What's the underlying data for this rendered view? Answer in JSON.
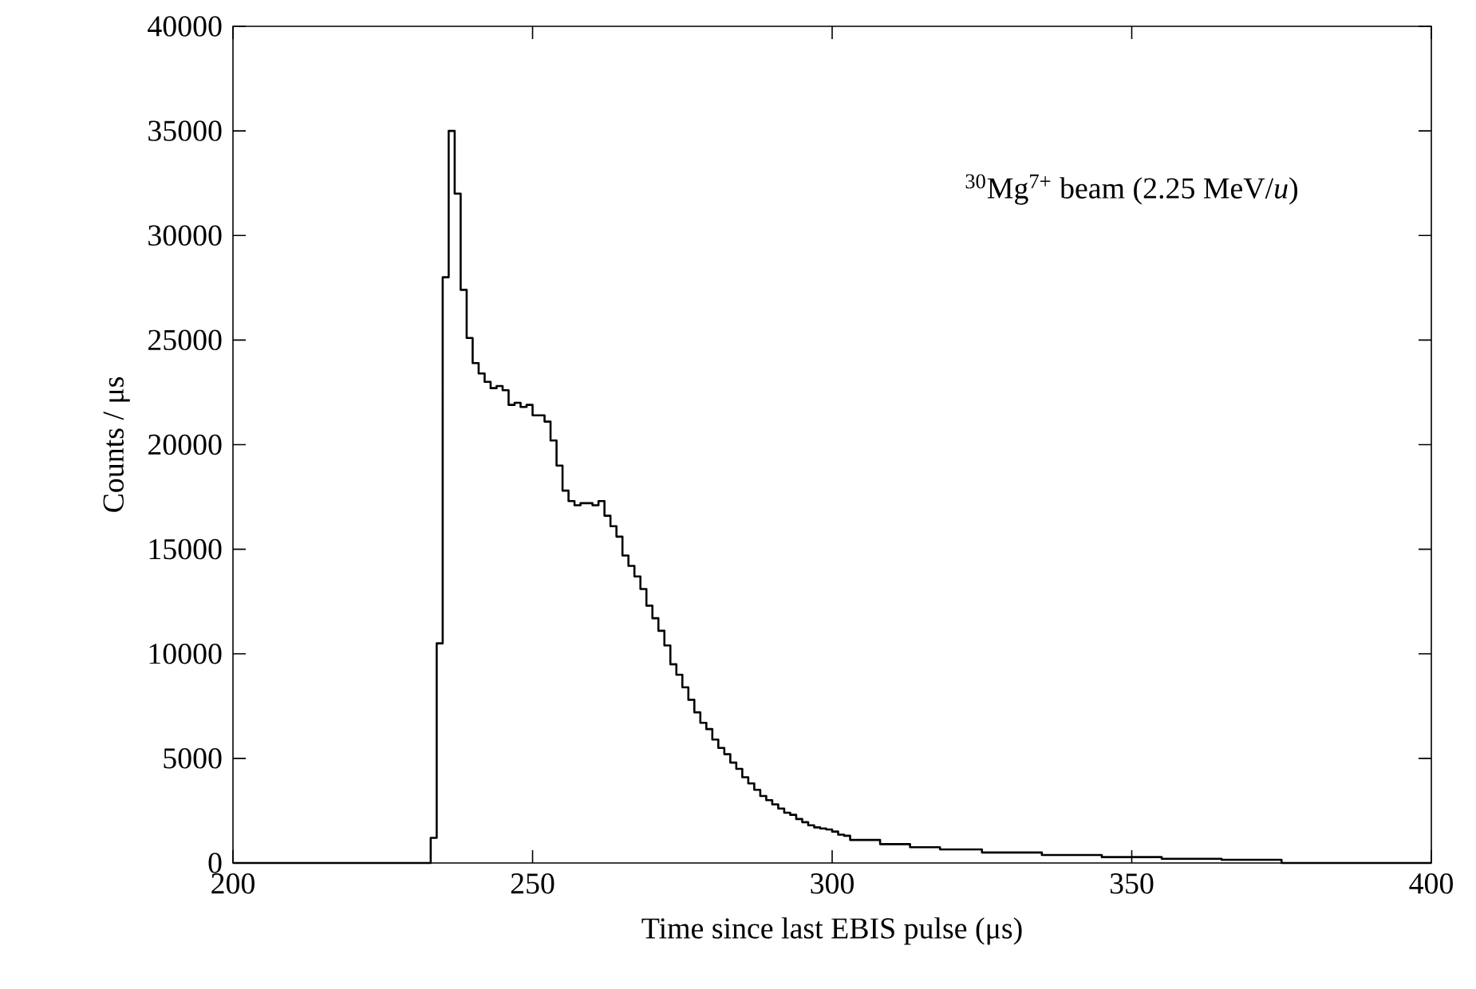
{
  "chart_data": {
    "type": "histogram",
    "xlabel": "Time since last EBIS pulse (μs)",
    "ylabel": "Counts / μs",
    "annotations": [
      "$^{30}$Mg$^{7+}$ beam (2.25 MeV/*u*)"
    ],
    "bins": [
      200,
      233,
      234,
      235,
      236,
      237,
      238,
      239,
      240,
      241,
      242,
      243,
      244,
      245,
      246,
      247,
      248,
      249,
      250,
      251,
      252,
      253,
      254,
      255,
      256,
      257,
      258,
      259,
      260,
      261,
      262,
      263,
      264,
      265,
      266,
      267,
      268,
      269,
      270,
      271,
      272,
      273,
      274,
      275,
      276,
      277,
      278,
      279,
      280,
      281,
      282,
      283,
      284,
      285,
      286,
      287,
      288,
      289,
      290,
      291,
      292,
      293,
      294,
      295,
      296,
      297,
      298,
      299,
      300,
      301,
      302,
      303,
      308,
      313,
      318,
      325,
      335,
      345,
      355,
      365,
      375,
      400
    ],
    "values": [
      0,
      1200,
      10500,
      28000,
      35000,
      32000,
      27400,
      25100,
      23900,
      23400,
      23000,
      22700,
      22800,
      22600,
      21900,
      22000,
      21800,
      21900,
      21400,
      21400,
      21100,
      20200,
      19000,
      17800,
      17300,
      17100,
      17200,
      17200,
      17100,
      17300,
      16600,
      16100,
      15600,
      14700,
      14200,
      13700,
      13100,
      12300,
      11700,
      11100,
      10400,
      9500,
      9000,
      8400,
      7800,
      7200,
      6700,
      6400,
      5900,
      5500,
      5200,
      4800,
      4500,
      4100,
      3800,
      3500,
      3200,
      3000,
      2800,
      2600,
      2400,
      2300,
      2100,
      1950,
      1800,
      1700,
      1650,
      1600,
      1500,
      1350,
      1300,
      1100,
      900,
      750,
      650,
      500,
      380,
      280,
      200,
      150,
      0
    ],
    "color": "#000000",
    "xlim": [
      200,
      400
    ],
    "ylim": [
      0,
      40000
    ],
    "xticks": [
      200,
      250,
      300,
      350,
      400
    ],
    "yticks": [
      0,
      5000,
      10000,
      15000,
      20000,
      25000,
      30000,
      35000,
      40000
    ]
  }
}
